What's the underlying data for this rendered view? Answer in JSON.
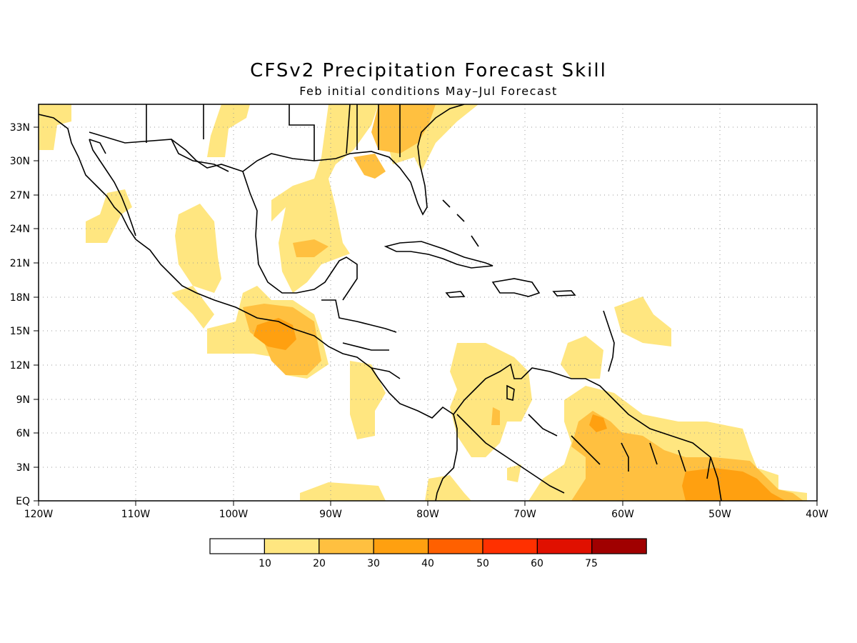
{
  "title": "CFSv2 Precipitation Forecast Skill",
  "subtitle": "Feb initial conditions   May–Jul Forecast",
  "map": {
    "lon_range": [
      -120,
      -40
    ],
    "lat_range": [
      0,
      35
    ],
    "lon_ticks": [
      "120W",
      "110W",
      "100W",
      "90W",
      "80W",
      "70W",
      "60W",
      "50W",
      "40W"
    ],
    "lat_ticks": [
      "EQ",
      "3N",
      "6N",
      "9N",
      "12N",
      "15N",
      "18N",
      "21N",
      "24N",
      "27N",
      "30N",
      "33N"
    ],
    "grid": "dotted"
  },
  "colorbar": {
    "labels": [
      "10",
      "20",
      "30",
      "40",
      "50",
      "60",
      "75"
    ],
    "colors": [
      "#ffffff",
      "#ffe680",
      "#ffc040",
      "#ffa010",
      "#ff6000",
      "#ff3000",
      "#e01000",
      "#a00000"
    ]
  },
  "colors": {
    "level1": "#ffe680",
    "level2": "#ffc040",
    "level3": "#ffa010",
    "coast": "#000000"
  }
}
